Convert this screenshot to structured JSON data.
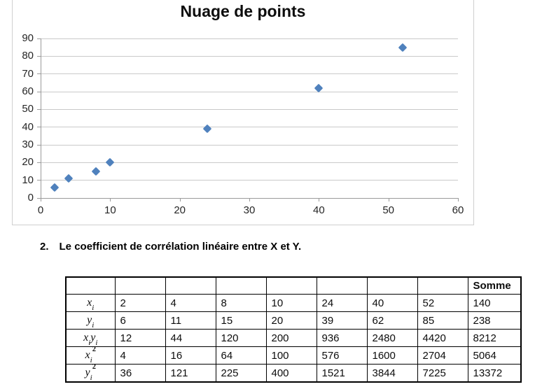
{
  "chart_data": {
    "type": "scatter",
    "title": "Nuage de points",
    "xlabel": "",
    "ylabel": "",
    "x": [
      2,
      4,
      8,
      10,
      24,
      40,
      52
    ],
    "y": [
      6,
      11,
      15,
      20,
      39,
      62,
      85
    ],
    "xlim": [
      0,
      60
    ],
    "ylim": [
      0,
      90
    ],
    "x_ticks": [
      0,
      10,
      20,
      30,
      40,
      50,
      60
    ],
    "y_ticks": [
      0,
      10,
      20,
      30,
      40,
      50,
      60,
      70,
      80,
      90
    ],
    "grid": "horizontal",
    "legend": "none",
    "marker": "diamond",
    "marker_color": "#4F81BD",
    "gridline_color": "#c9c9c9",
    "axis_color": "#9a9a9a"
  },
  "section": {
    "number": "2.",
    "text": "Le coefficient de corrélation linéaire entre X et Y."
  },
  "table": {
    "somme_header": "Somme",
    "empty_header_cells": 8,
    "rows": [
      {
        "label": {
          "text": "xi",
          "segments": [
            {
              "base": "x",
              "sub": "i"
            }
          ]
        },
        "values": [
          "2",
          "4",
          "8",
          "10",
          "24",
          "40",
          "52",
          "140"
        ]
      },
      {
        "label": {
          "text": "yi",
          "segments": [
            {
              "base": "y",
              "sub": "i"
            }
          ]
        },
        "values": [
          "6",
          "11",
          "15",
          "20",
          "39",
          "62",
          "85",
          "238"
        ]
      },
      {
        "label": {
          "text": "xiyi",
          "segments": [
            {
              "base": "x",
              "sub": "i"
            },
            {
              "base": "y",
              "sub": "i"
            }
          ]
        },
        "values": [
          "12",
          "44",
          "120",
          "200",
          "936",
          "2480",
          "4420",
          "8212"
        ]
      },
      {
        "label": {
          "text": "xi2",
          "segments": [
            {
              "base": "x",
              "sub": "i",
              "sup": "2"
            }
          ]
        },
        "values": [
          "4",
          "16",
          "64",
          "100",
          "576",
          "1600",
          "2704",
          "5064"
        ]
      },
      {
        "label": {
          "text": "yi2",
          "segments": [
            {
              "base": "y",
              "sub": "i",
              "sup": "2"
            }
          ]
        },
        "values": [
          "36",
          "121",
          "225",
          "400",
          "1521",
          "3844",
          "7225",
          "13372"
        ]
      }
    ]
  }
}
